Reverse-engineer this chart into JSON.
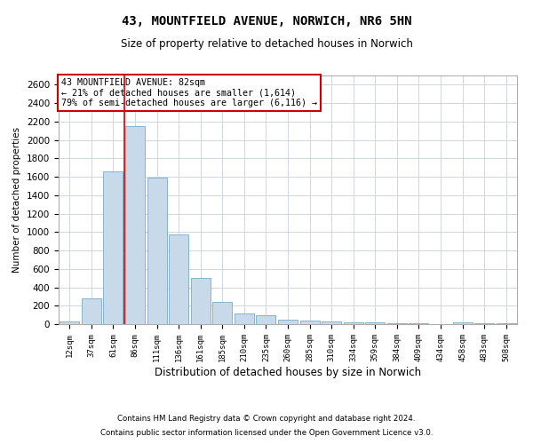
{
  "title_line1": "43, MOUNTFIELD AVENUE, NORWICH, NR6 5HN",
  "title_line2": "Size of property relative to detached houses in Norwich",
  "xlabel": "Distribution of detached houses by size in Norwich",
  "ylabel": "Number of detached properties",
  "footer_line1": "Contains HM Land Registry data © Crown copyright and database right 2024.",
  "footer_line2": "Contains public sector information licensed under the Open Government Licence v3.0.",
  "annotation_line1": "43 MOUNTFIELD AVENUE: 82sqm",
  "annotation_line2": "← 21% of detached houses are smaller (1,614)",
  "annotation_line3": "79% of semi-detached houses are larger (6,116) →",
  "bar_labels": [
    "12sqm",
    "37sqm",
    "61sqm",
    "86sqm",
    "111sqm",
    "136sqm",
    "161sqm",
    "185sqm",
    "210sqm",
    "235sqm",
    "260sqm",
    "285sqm",
    "310sqm",
    "334sqm",
    "359sqm",
    "384sqm",
    "409sqm",
    "434sqm",
    "458sqm",
    "483sqm",
    "508sqm"
  ],
  "bar_values": [
    25,
    280,
    1660,
    2150,
    1590,
    970,
    500,
    245,
    120,
    95,
    45,
    40,
    30,
    20,
    15,
    5,
    5,
    0,
    15,
    5,
    10
  ],
  "bar_color": "#c8daea",
  "bar_edge_color": "#7aaac8",
  "red_line_color": "#cc0000",
  "ylim": [
    0,
    2700
  ],
  "yticks": [
    0,
    200,
    400,
    600,
    800,
    1000,
    1200,
    1400,
    1600,
    1800,
    2000,
    2200,
    2400,
    2600
  ],
  "annotation_box_color": "#ffffff",
  "annotation_box_edge": "#cc0000",
  "background_color": "#ffffff",
  "grid_color": "#c8d0dc"
}
